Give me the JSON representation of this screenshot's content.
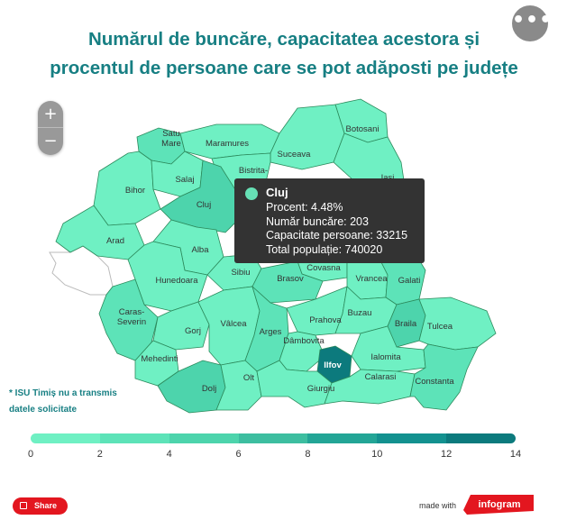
{
  "title_line1": "Numărul de buncăre, capacitatea acestora și",
  "title_line2": "procentul de persoane care se pot adăposti pe județe",
  "more_label": "•••",
  "zoom": {
    "plus": "+",
    "minus": "−"
  },
  "counties": [
    {
      "name": "Satu\nMare",
      "value": 2.5
    },
    {
      "name": "Maramures",
      "value": 1.2
    },
    {
      "name": "Botosani",
      "value": 1.5
    },
    {
      "name": "Suceava",
      "value": 1.0
    },
    {
      "name": "Bihor",
      "value": 1.3
    },
    {
      "name": "Salaj",
      "value": 0.8
    },
    {
      "name": "Bistrita-",
      "value": 1.1
    },
    {
      "name": "Iasi",
      "value": 1.0
    },
    {
      "name": "Cluj",
      "value": 4.48
    },
    {
      "name": "Arad",
      "value": 1.1
    },
    {
      "name": "Alba",
      "value": 1.0
    },
    {
      "name": "Sibiu",
      "value": 1.3
    },
    {
      "name": "Covasna",
      "value": 1.6
    },
    {
      "name": "Brasov",
      "value": 2.0
    },
    {
      "name": "Vrancea",
      "value": 1.2
    },
    {
      "name": "Galati",
      "value": 2.3
    },
    {
      "name": "Hunedoara",
      "value": 1.1
    },
    {
      "name": "Caras-\nSeverin",
      "value": 2.4
    },
    {
      "name": "Gorj",
      "value": 1.5
    },
    {
      "name": "Vâlcea",
      "value": 1.1
    },
    {
      "name": "Arges",
      "value": 2.6
    },
    {
      "name": "Prahova",
      "value": 1.3
    },
    {
      "name": "Buzau",
      "value": 1.1
    },
    {
      "name": "Braila",
      "value": 4.2
    },
    {
      "name": "Tulcea",
      "value": 1.0
    },
    {
      "name": "Dâmbovita",
      "value": 1.3
    },
    {
      "name": "Mehedinti",
      "value": 1.1
    },
    {
      "name": "Ilfov",
      "value": 13.0
    },
    {
      "name": "Ialomita",
      "value": 1.1
    },
    {
      "name": "Dolj",
      "value": 4.0
    },
    {
      "name": "Olt",
      "value": 1.0
    },
    {
      "name": "Giurgiu",
      "value": 1.1
    },
    {
      "name": "Calarasi",
      "value": 1.2
    },
    {
      "name": "Constanta",
      "value": 2.2
    }
  ],
  "tooltip": {
    "name": "Cluj",
    "line1": "Procent: 4.48%",
    "line2": "Număr buncăre: 203",
    "line3": "Capacitate persoane: 33215",
    "line4": "Total populație: 740020"
  },
  "note_line1": "* ISU Timiș nu a transmis",
  "note_line2": "datele solicitate",
  "legend": {
    "ticks": [
      "0",
      "2",
      "4",
      "6",
      "8",
      "10",
      "12",
      "14"
    ],
    "colors": [
      "#6ff0c3",
      "#5de3b8",
      "#4dd4ac",
      "#3dbea0",
      "#23a596",
      "#13918f",
      "#0c7a7d"
    ]
  },
  "share_label": "Share",
  "made_with_label": "made with",
  "brand_label": "infogram",
  "colors": {
    "title": "#177f83",
    "county_border": "#2c8a5c",
    "timis": "#ffffff",
    "brand": "#e3161f"
  }
}
